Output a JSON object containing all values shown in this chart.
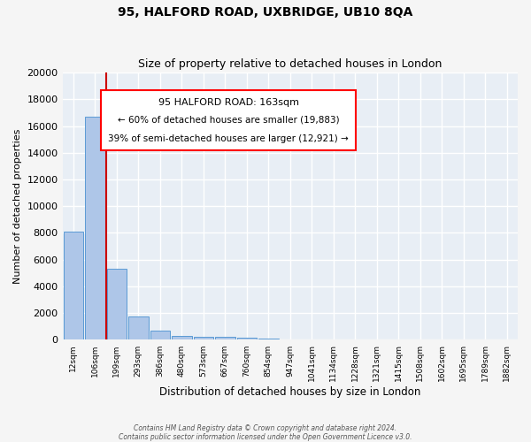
{
  "title": "95, HALFORD ROAD, UXBRIDGE, UB10 8QA",
  "subtitle": "Size of property relative to detached houses in London",
  "xlabel": "Distribution of detached houses by size in London",
  "ylabel": "Number of detached properties",
  "bin_labels": [
    "12sqm",
    "106sqm",
    "199sqm",
    "293sqm",
    "386sqm",
    "480sqm",
    "573sqm",
    "667sqm",
    "760sqm",
    "854sqm",
    "947sqm",
    "1041sqm",
    "1134sqm",
    "1228sqm",
    "1321sqm",
    "1415sqm",
    "1508sqm",
    "1602sqm",
    "1695sqm",
    "1789sqm",
    "1882sqm"
  ],
  "bar_heights": [
    8100,
    16700,
    5300,
    1750,
    700,
    300,
    230,
    200,
    160,
    120,
    0,
    0,
    0,
    0,
    0,
    0,
    0,
    0,
    0,
    0,
    0
  ],
  "bar_color": "#aec6e8",
  "bar_edge_color": "#5b9bd5",
  "bg_color": "#e8eef5",
  "grid_color": "#ffffff",
  "vline_color": "#cc0000",
  "ylim_max": 20000,
  "yticks": [
    0,
    2000,
    4000,
    6000,
    8000,
    10000,
    12000,
    14000,
    16000,
    18000,
    20000
  ],
  "annotation_title": "95 HALFORD ROAD: 163sqm",
  "annotation_line1": "← 60% of detached houses are smaller (19,883)",
  "annotation_line2": "39% of semi-detached houses are larger (12,921) →",
  "footer1": "Contains HM Land Registry data © Crown copyright and database right 2024.",
  "footer2": "Contains public sector information licensed under the Open Government Licence v3.0."
}
